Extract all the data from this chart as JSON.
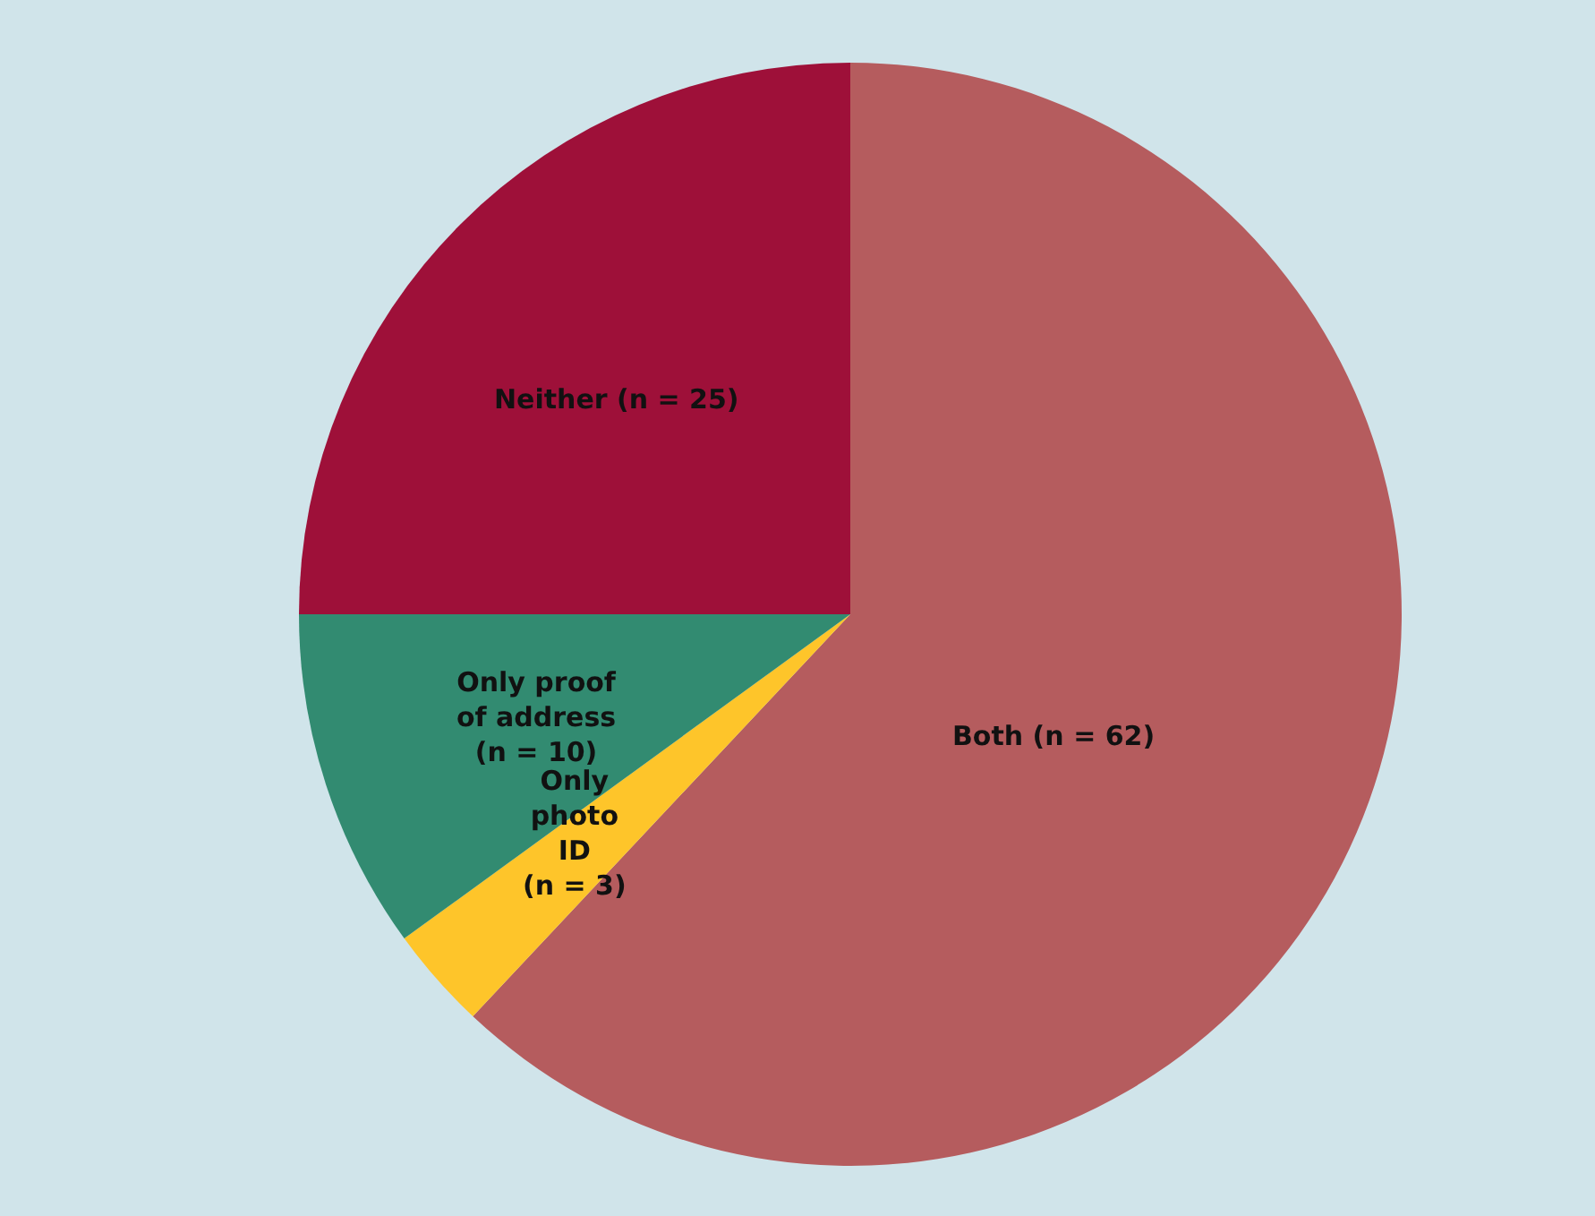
{
  "chart_data": {
    "type": "pie",
    "categories": [
      "Both (n = 62)",
      "Only\nphoto\nID\n(n = 3)",
      "Only proof\nof address\n(n = 10)",
      "Neither (n = 25)"
    ],
    "values": [
      62,
      3,
      10,
      25
    ],
    "colors": [
      "#b55c5e",
      "#fec52a",
      "#328b71",
      "#9e1039"
    ],
    "legend": false
  }
}
